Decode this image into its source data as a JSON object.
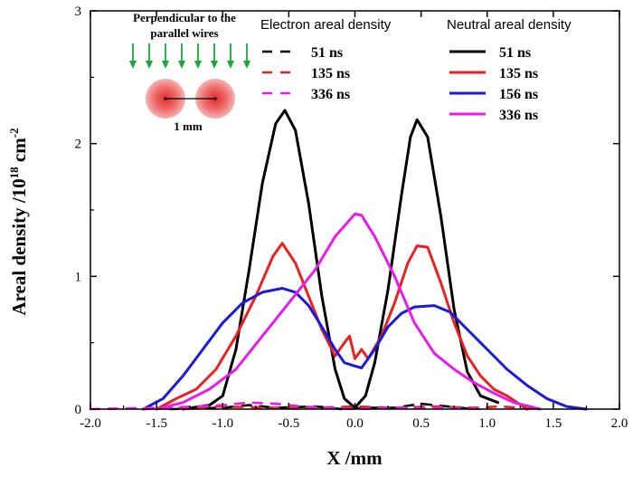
{
  "chart_data": {
    "type": "line",
    "xlabel": "X /mm",
    "ylabel_prefix": "Areal density /10",
    "ylabel_exp": "18",
    "ylabel_unit": " cm",
    "ylabel_unit_exp": "-2",
    "xlim": [
      -2.0,
      2.0
    ],
    "ylim": [
      0,
      3
    ],
    "xticks": [
      "-2.0",
      "-1.5",
      "-1.0",
      "-0.5",
      "0.0",
      "0.5",
      "1.0",
      "1.5",
      "2.0"
    ],
    "yticks": [
      "0",
      "1",
      "2",
      "3"
    ],
    "grid": false,
    "legend_groups": [
      {
        "title": "Electron areal density",
        "position": "top-center"
      },
      {
        "title": "Neutral areal density",
        "position": "top-right"
      }
    ],
    "inset": {
      "text_line1": "Perpendicular to the",
      "text_line2": "parallel wires",
      "scale_label": "1 mm"
    },
    "series": [
      {
        "name": "51 ns",
        "group": "neutral",
        "color": "#000000",
        "dash": "solid",
        "points": [
          [
            -1.3,
            0
          ],
          [
            -1.1,
            0.03
          ],
          [
            -1.0,
            0.1
          ],
          [
            -0.9,
            0.45
          ],
          [
            -0.8,
            1.05
          ],
          [
            -0.7,
            1.7
          ],
          [
            -0.6,
            2.15
          ],
          [
            -0.53,
            2.25
          ],
          [
            -0.45,
            2.1
          ],
          [
            -0.35,
            1.55
          ],
          [
            -0.25,
            0.85
          ],
          [
            -0.15,
            0.3
          ],
          [
            -0.08,
            0.08
          ],
          [
            0.0,
            0.01
          ],
          [
            0.08,
            0.1
          ],
          [
            0.15,
            0.35
          ],
          [
            0.25,
            0.9
          ],
          [
            0.35,
            1.6
          ],
          [
            0.42,
            2.05
          ],
          [
            0.47,
            2.18
          ],
          [
            0.55,
            2.05
          ],
          [
            0.65,
            1.45
          ],
          [
            0.75,
            0.75
          ],
          [
            0.85,
            0.28
          ],
          [
            0.95,
            0.1
          ],
          [
            1.08,
            0.05
          ]
        ]
      },
      {
        "name": "135 ns",
        "group": "neutral",
        "color": "#e82020",
        "dash": "solid",
        "points": [
          [
            -1.5,
            0
          ],
          [
            -1.35,
            0.08
          ],
          [
            -1.2,
            0.15
          ],
          [
            -1.05,
            0.3
          ],
          [
            -0.9,
            0.55
          ],
          [
            -0.75,
            0.85
          ],
          [
            -0.62,
            1.15
          ],
          [
            -0.55,
            1.25
          ],
          [
            -0.45,
            1.1
          ],
          [
            -0.35,
            0.85
          ],
          [
            -0.25,
            0.6
          ],
          [
            -0.15,
            0.4
          ],
          [
            -0.08,
            0.5
          ],
          [
            -0.04,
            0.55
          ],
          [
            0.0,
            0.38
          ],
          [
            0.05,
            0.45
          ],
          [
            0.1,
            0.38
          ],
          [
            0.2,
            0.55
          ],
          [
            0.3,
            0.8
          ],
          [
            0.4,
            1.1
          ],
          [
            0.47,
            1.23
          ],
          [
            0.55,
            1.22
          ],
          [
            0.65,
            0.95
          ],
          [
            0.75,
            0.65
          ],
          [
            0.85,
            0.4
          ],
          [
            0.95,
            0.25
          ],
          [
            1.05,
            0.15
          ],
          [
            1.15,
            0.1
          ],
          [
            1.3,
            0
          ]
        ]
      },
      {
        "name": "156 ns",
        "group": "neutral",
        "color": "#1a1ad8",
        "dash": "solid",
        "points": [
          [
            -1.6,
            0
          ],
          [
            -1.45,
            0.08
          ],
          [
            -1.3,
            0.25
          ],
          [
            -1.15,
            0.45
          ],
          [
            -1.0,
            0.65
          ],
          [
            -0.85,
            0.8
          ],
          [
            -0.7,
            0.88
          ],
          [
            -0.55,
            0.91
          ],
          [
            -0.45,
            0.88
          ],
          [
            -0.35,
            0.78
          ],
          [
            -0.25,
            0.62
          ],
          [
            -0.15,
            0.45
          ],
          [
            -0.08,
            0.35
          ],
          [
            -0.02,
            0.33
          ],
          [
            0.05,
            0.31
          ],
          [
            0.15,
            0.45
          ],
          [
            0.25,
            0.62
          ],
          [
            0.35,
            0.72
          ],
          [
            0.45,
            0.77
          ],
          [
            0.6,
            0.78
          ],
          [
            0.72,
            0.73
          ],
          [
            0.85,
            0.6
          ],
          [
            1.0,
            0.45
          ],
          [
            1.15,
            0.3
          ],
          [
            1.3,
            0.18
          ],
          [
            1.45,
            0.08
          ],
          [
            1.6,
            0.02
          ],
          [
            1.75,
            0
          ]
        ]
      },
      {
        "name": "336 ns",
        "group": "neutral",
        "color": "#e81be8",
        "dash": "solid",
        "points": [
          [
            -1.5,
            0
          ],
          [
            -1.3,
            0.05
          ],
          [
            -1.1,
            0.15
          ],
          [
            -0.9,
            0.3
          ],
          [
            -0.7,
            0.55
          ],
          [
            -0.5,
            0.8
          ],
          [
            -0.3,
            1.05
          ],
          [
            -0.15,
            1.3
          ],
          [
            0.0,
            1.47
          ],
          [
            0.05,
            1.46
          ],
          [
            0.15,
            1.3
          ],
          [
            0.3,
            1.0
          ],
          [
            0.45,
            0.65
          ],
          [
            0.6,
            0.42
          ],
          [
            0.75,
            0.3
          ],
          [
            0.9,
            0.2
          ],
          [
            1.05,
            0.12
          ],
          [
            1.2,
            0.05
          ],
          [
            1.4,
            0
          ]
        ]
      },
      {
        "name": "51 ns",
        "group": "electron",
        "color": "#000000",
        "dash": "dashed",
        "points": [
          [
            -1.4,
            0
          ],
          [
            -1.0,
            0.01
          ],
          [
            -0.8,
            0.03
          ],
          [
            -0.6,
            0.01
          ],
          [
            -0.3,
            0.02
          ],
          [
            -0.1,
            0.0
          ],
          [
            0.1,
            0.01
          ],
          [
            0.3,
            0.01
          ],
          [
            0.5,
            0.04
          ],
          [
            0.7,
            0.02
          ],
          [
            0.9,
            0.0
          ]
        ]
      },
      {
        "name": "135 ns",
        "group": "electron",
        "color": "#e82020",
        "dash": "dashed",
        "points": [
          [
            -1.6,
            0
          ],
          [
            -1.3,
            0.01
          ],
          [
            -1.0,
            0.02
          ],
          [
            -0.6,
            0.01
          ],
          [
            -0.3,
            0.01
          ],
          [
            0.0,
            0.02
          ],
          [
            0.3,
            0.01
          ],
          [
            0.6,
            0.02
          ],
          [
            0.9,
            0.01
          ],
          [
            1.1,
            0.02
          ],
          [
            1.4,
            0
          ]
        ]
      },
      {
        "name": "336 ns",
        "group": "electron",
        "color": "#e81be8",
        "dash": "dashed",
        "points": [
          [
            -2.0,
            0
          ],
          [
            -1.5,
            0.01
          ],
          [
            -1.2,
            0.02
          ],
          [
            -1.0,
            0.03
          ],
          [
            -0.8,
            0.05
          ],
          [
            -0.6,
            0.04
          ],
          [
            -0.4,
            0.02
          ],
          [
            -0.2,
            0.01
          ],
          [
            0.0,
            0.0
          ],
          [
            0.3,
            0.01
          ],
          [
            0.6,
            0.01
          ],
          [
            1.0,
            0.0
          ]
        ]
      }
    ]
  }
}
